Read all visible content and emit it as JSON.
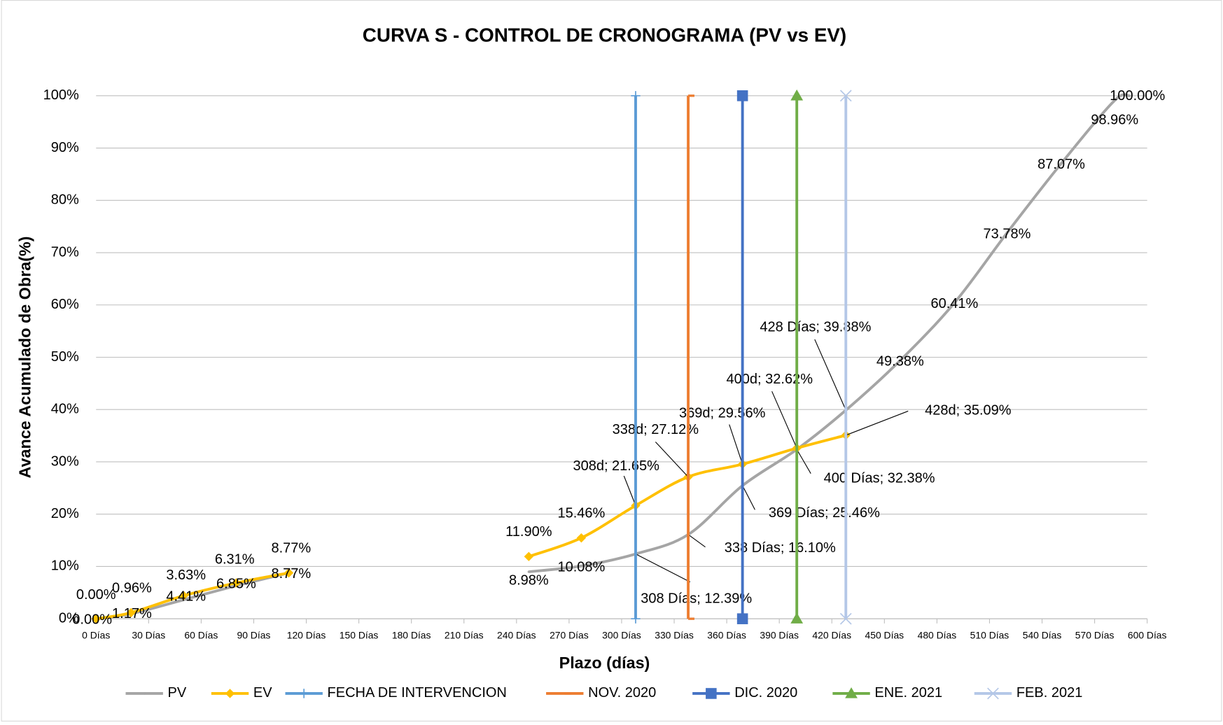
{
  "chart_data": {
    "type": "line",
    "title": "CURVA S - CONTROL DE CRONOGRAMA (PV vs EV)",
    "xlabel": "Plazo (días)",
    "ylabel": "Avance Acumulado de Obra(%)",
    "xlim": [
      0,
      600
    ],
    "ylim": [
      0,
      100
    ],
    "xticks": [
      {
        "value": 0,
        "label": "0 Días"
      },
      {
        "value": 30,
        "label": "30 Días"
      },
      {
        "value": 60,
        "label": "60 Días"
      },
      {
        "value": 90,
        "label": "90 Días"
      },
      {
        "value": 120,
        "label": "120 Días"
      },
      {
        "value": 150,
        "label": "150 Días"
      },
      {
        "value": 180,
        "label": "180 Días"
      },
      {
        "value": 210,
        "label": "210 Días"
      },
      {
        "value": 240,
        "label": "240 Días"
      },
      {
        "value": 270,
        "label": "270 Días"
      },
      {
        "value": 300,
        "label": "300 Días"
      },
      {
        "value": 330,
        "label": "330 Días"
      },
      {
        "value": 360,
        "label": "360 Días"
      },
      {
        "value": 390,
        "label": "390 Días"
      },
      {
        "value": 420,
        "label": "420 Días"
      },
      {
        "value": 450,
        "label": "450 Días"
      },
      {
        "value": 480,
        "label": "480 Días"
      },
      {
        "value": 510,
        "label": "510 Días"
      },
      {
        "value": 540,
        "label": "540 Días"
      },
      {
        "value": 570,
        "label": "570 Días"
      },
      {
        "value": 600,
        "label": "600 Días"
      }
    ],
    "yticks": [
      {
        "value": 0,
        "label": "0%"
      },
      {
        "value": 10,
        "label": "10%"
      },
      {
        "value": 20,
        "label": "20%"
      },
      {
        "value": 30,
        "label": "30%"
      },
      {
        "value": 40,
        "label": "40%"
      },
      {
        "value": 50,
        "label": "50%"
      },
      {
        "value": 60,
        "label": "60%"
      },
      {
        "value": 70,
        "label": "70%"
      },
      {
        "value": 80,
        "label": "80%"
      },
      {
        "value": 90,
        "label": "90%"
      },
      {
        "value": 100,
        "label": "100%"
      }
    ],
    "grid": true,
    "legend": "bottom",
    "series": [
      {
        "name": "PV",
        "color": "#a5a5a5",
        "marker": "none",
        "smooth": true,
        "x": [
          0,
          20,
          50,
          80,
          110,
          180,
          247,
          277,
          308,
          338,
          369,
          400,
          428,
          459,
          490,
          520,
          551,
          581,
          590
        ],
        "values": [
          0,
          0.96,
          3.63,
          6.31,
          8.77,
          null,
          8.98,
          10.08,
          12.39,
          16.1,
          25.46,
          32.38,
          39.88,
          49.38,
          60.41,
          73.78,
          87.07,
          98.96,
          100
        ],
        "value_labels": [
          "0.00%",
          "0.96%",
          "3.63%",
          "6.31%",
          "8.77%",
          null,
          "8.98%",
          "10.08%",
          "308 Días; 12.39%",
          "338 Días; 16.10%",
          "369 Días; 25.46%",
          "400 Días; 32.38%",
          "428 Días; 39.88%",
          "49.38%",
          "60.41%",
          "73.78%",
          "87.07%",
          "98.96%",
          "100.00%"
        ]
      },
      {
        "name": "EV",
        "color": "#ffc000",
        "marker": "diamond",
        "smooth": true,
        "x": [
          0,
          20,
          50,
          80,
          110,
          180,
          247,
          277,
          308,
          338,
          369,
          400,
          428
        ],
        "values": [
          0,
          1.17,
          4.41,
          6.85,
          8.77,
          null,
          11.9,
          15.46,
          21.65,
          27.12,
          29.56,
          32.62,
          35.09
        ],
        "value_labels": [
          "0.00%",
          "1.17%",
          "4.41%",
          "6.85%",
          "8.77%",
          null,
          "11.90%",
          "15.46%",
          "308d; 21.65%",
          "338d; 27.12%",
          "369d; 29.56%",
          "400d; 32.62%",
          "428d; 35.09%"
        ]
      },
      {
        "name": "FECHA DE INTERVENCION",
        "color": "#5b9bd5",
        "marker": "plus",
        "x": [
          308,
          308
        ],
        "values": [
          0,
          100
        ]
      },
      {
        "name": "NOV. 2020",
        "color": "#ed7d31",
        "marker": "cap",
        "x": [
          338,
          338
        ],
        "values": [
          0,
          100
        ]
      },
      {
        "name": "DIC. 2020",
        "color": "#4472c4",
        "marker": "square",
        "x": [
          369,
          369
        ],
        "values": [
          0,
          100
        ]
      },
      {
        "name": "ENE. 2021",
        "color": "#70ad47",
        "marker": "triangle",
        "x": [
          400,
          400
        ],
        "values": [
          0,
          100
        ]
      },
      {
        "name": "FEB. 2021",
        "color": "#b4c7e7",
        "marker": "x",
        "x": [
          428,
          428
        ],
        "values": [
          0,
          100
        ]
      }
    ]
  }
}
